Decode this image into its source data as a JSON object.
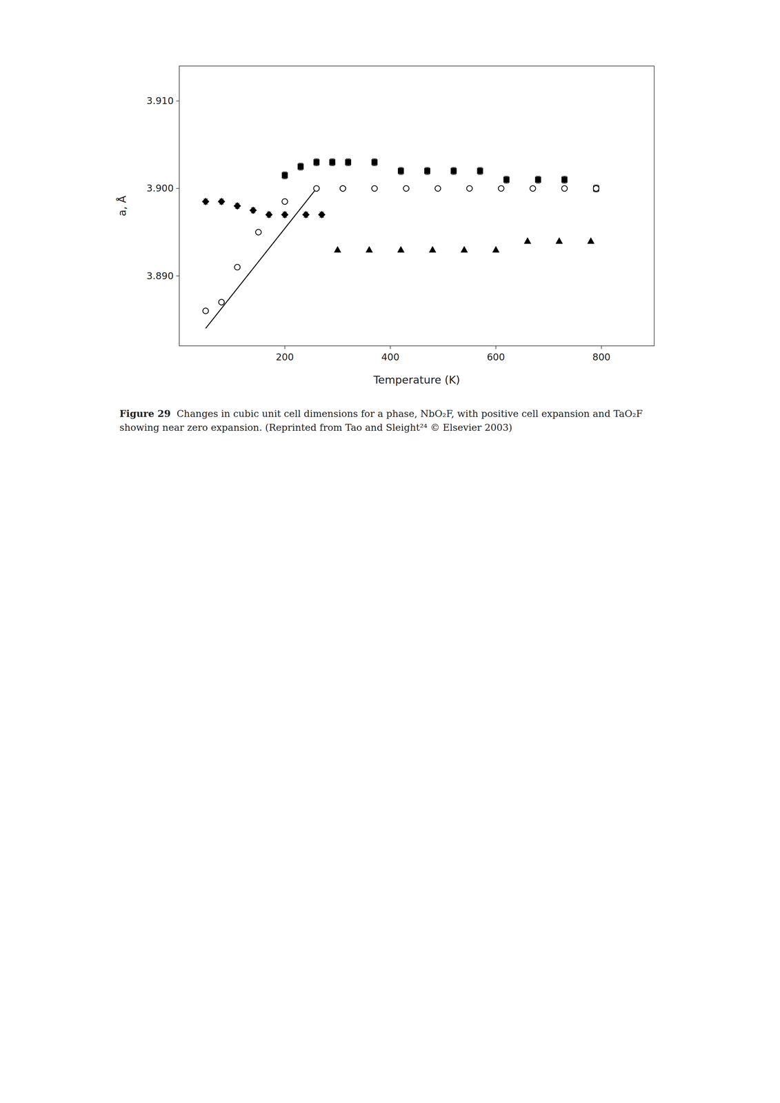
{
  "chart_data": {
    "type": "scatter",
    "title": "Figure 29",
    "subtitle": "  Changes in cubic unit cell dimensions for a phase, NbO₂F, with positive cell expansion and TaO₂F showing near zero expansion. (Reprinted from Tao and Sleight²⁴ © Elsevier 2003)",
    "x_label": "Temperature (K)",
    "y_label": "a, Å",
    "xlim": [
      0,
      900
    ],
    "ylim": [
      3.882,
      3.914
    ],
    "xticks": [
      200,
      400,
      600,
      800
    ],
    "yticks": [
      {
        "value": 3.89,
        "label": "3.890"
      },
      {
        "value": 3.9,
        "label": "3.900"
      },
      {
        "value": 3.91,
        "label": "3.910"
      }
    ],
    "grid": false,
    "series": [
      {
        "marker": "square",
        "color": "#000000",
        "error": 0.0004,
        "x": [
          200,
          230,
          260,
          290,
          320,
          370,
          420,
          470,
          520,
          570,
          620,
          680,
          730,
          790
        ],
        "values": [
          3.9015,
          3.9025,
          3.903,
          3.903,
          3.903,
          3.903,
          3.902,
          3.902,
          3.902,
          3.902,
          3.901,
          3.901,
          3.901,
          3.9
        ]
      },
      {
        "marker": "diamond",
        "color": "#000000",
        "error": 0.0003,
        "x": [
          50,
          80,
          110,
          140,
          170,
          200,
          240,
          270
        ],
        "values": [
          3.8985,
          3.8985,
          3.898,
          3.8975,
          3.897,
          3.897,
          3.897,
          3.897
        ]
      },
      {
        "marker": "circle_open",
        "color": "#000000",
        "x": [
          50,
          80,
          110,
          150,
          200,
          260,
          310
        ],
        "values": [
          3.886,
          3.887,
          3.891,
          3.895,
          3.8985,
          3.9,
          3.9
        ]
      },
      {
        "marker": "circle_open",
        "color": "#000000",
        "x": [
          310,
          370,
          430,
          490,
          550,
          610,
          670,
          730,
          790
        ],
        "values": [
          3.9,
          3.9,
          3.9,
          3.9,
          3.9,
          3.9,
          3.9,
          3.9,
          3.9
        ]
      },
      {
        "marker": "triangle",
        "color": "#000000",
        "x": [
          300,
          360,
          420,
          480,
          540,
          600,
          660,
          720,
          780
        ],
        "values": [
          3.893,
          3.893,
          3.893,
          3.893,
          3.893,
          3.893,
          3.894,
          3.894,
          3.894
        ]
      },
      {
        "type": "line",
        "line_style": "solid",
        "color": "#000000",
        "x": [
          50,
          260
        ],
        "values": [
          3.884,
          3.9
        ]
      }
    ]
  }
}
